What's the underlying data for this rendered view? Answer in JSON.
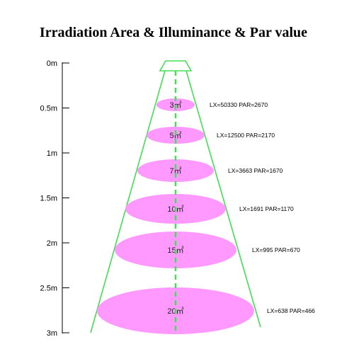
{
  "title": "Irradiation Area & Illuminance & Par value",
  "colors": {
    "beam": "#44dd55",
    "disc": "#ff99ff",
    "axis": "#000000"
  },
  "axis": {
    "ticks": [
      {
        "label": "0m",
        "distance_m": 0
      },
      {
        "label": "0.5m",
        "distance_m": 0.5
      },
      {
        "label": "1m",
        "distance_m": 1
      },
      {
        "label": "1.5m",
        "distance_m": 1.5
      },
      {
        "label": "2m",
        "distance_m": 2
      },
      {
        "label": "2.5m",
        "distance_m": 2.5
      },
      {
        "label": "3m",
        "distance_m": 3
      }
    ]
  },
  "levels": [
    {
      "area": "3㎡",
      "values": "LX=50330  PAR=2670"
    },
    {
      "area": "5㎡",
      "values": "LX=12500  PAR=2170"
    },
    {
      "area": "7㎡",
      "values": "LX=3663  PAR=1670"
    },
    {
      "area": "10㎡",
      "values": "LX=1691  PAR=1170"
    },
    {
      "area": "15㎡",
      "values": "LX=995  PAR=670"
    },
    {
      "area": "20㎡",
      "values": "LX=638  PAR=466"
    }
  ]
}
